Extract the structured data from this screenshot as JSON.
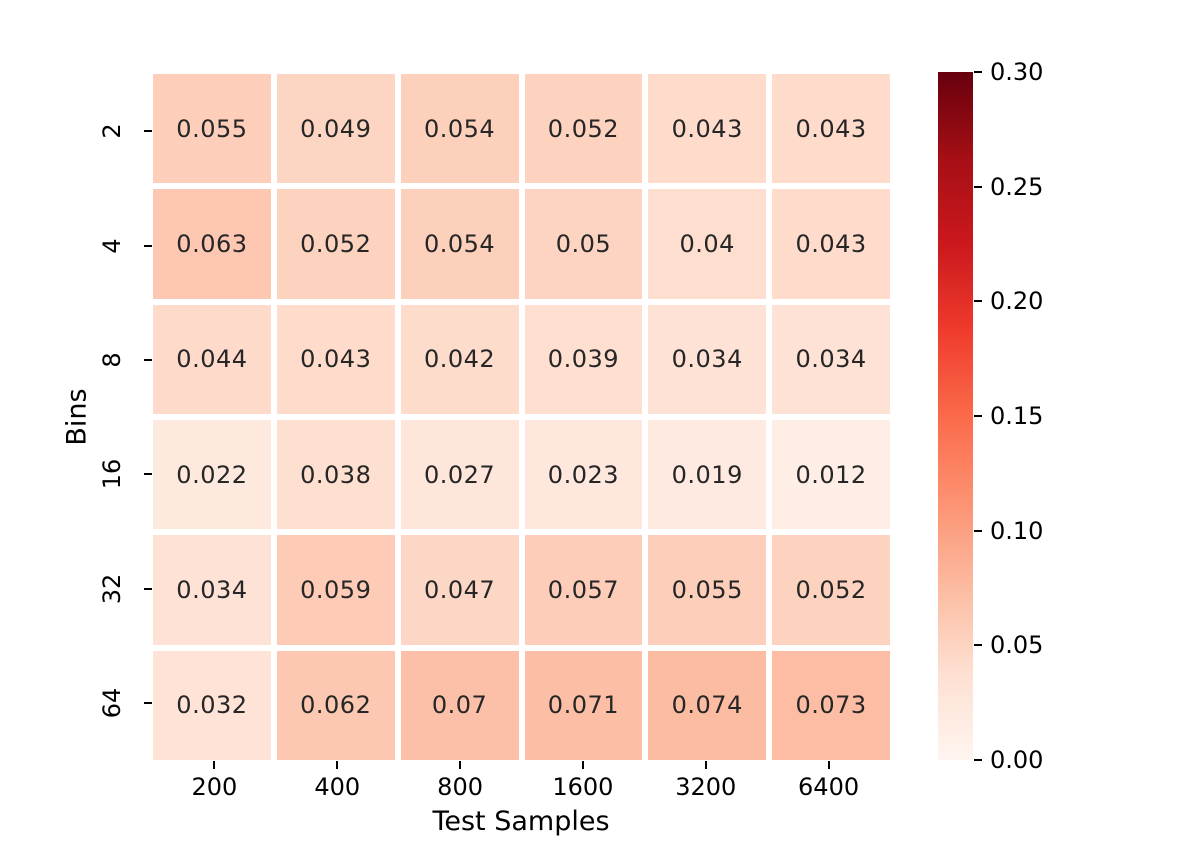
{
  "chart_data": {
    "type": "heatmap",
    "title": "",
    "xlabel": "Test Samples",
    "ylabel": "Bins",
    "x_categories": [
      "200",
      "400",
      "800",
      "1600",
      "3200",
      "6400"
    ],
    "y_categories": [
      "2",
      "4",
      "8",
      "16",
      "32",
      "64"
    ],
    "values": [
      [
        0.055,
        0.049,
        0.054,
        0.052,
        0.043,
        0.043
      ],
      [
        0.063,
        0.052,
        0.054,
        0.05,
        0.04,
        0.043
      ],
      [
        0.044,
        0.043,
        0.042,
        0.039,
        0.034,
        0.034
      ],
      [
        0.022,
        0.038,
        0.027,
        0.023,
        0.019,
        0.012
      ],
      [
        0.034,
        0.059,
        0.047,
        0.057,
        0.055,
        0.052
      ],
      [
        0.032,
        0.062,
        0.07,
        0.071,
        0.074,
        0.073
      ]
    ],
    "cell_labels": [
      [
        "0.055",
        "0.049",
        "0.054",
        "0.052",
        "0.043",
        "0.043"
      ],
      [
        "0.063",
        "0.052",
        "0.054",
        "0.05",
        "0.04",
        "0.043"
      ],
      [
        "0.044",
        "0.043",
        "0.042",
        "0.039",
        "0.034",
        "0.034"
      ],
      [
        "0.022",
        "0.038",
        "0.027",
        "0.023",
        "0.019",
        "0.012"
      ],
      [
        "0.034",
        "0.059",
        "0.047",
        "0.057",
        "0.055",
        "0.052"
      ],
      [
        "0.032",
        "0.062",
        "0.07",
        "0.071",
        "0.074",
        "0.073"
      ]
    ],
    "vmin": 0.0,
    "vmax": 0.3,
    "colormap": "Reds",
    "colormap_stops": [
      "#fff5f0",
      "#fee0d2",
      "#fcbba1",
      "#fc9272",
      "#fb6a4a",
      "#ef3b2c",
      "#cb181d",
      "#a50f15",
      "#67000d"
    ],
    "colorbar_tick_labels": [
      "0.00",
      "0.05",
      "0.10",
      "0.15",
      "0.20",
      "0.25",
      "0.30"
    ],
    "colorbar_tick_values": [
      0.0,
      0.05,
      0.1,
      0.15,
      0.2,
      0.25,
      0.3
    ],
    "grid_gap_color": "#ffffff",
    "annotation_color": "#262626",
    "tick_color": "#000000",
    "legend_position": "right-colorbar",
    "grid": "off"
  }
}
